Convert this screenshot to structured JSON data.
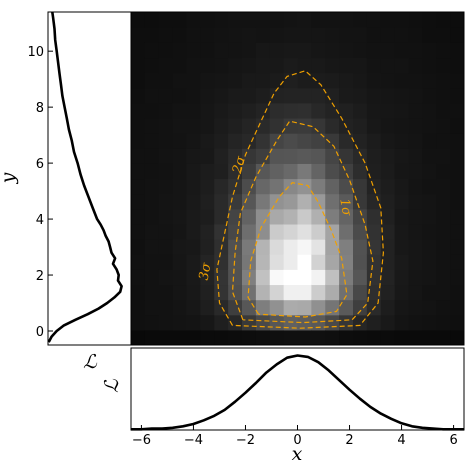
{
  "chart_data": [
    {
      "type": "heatmap",
      "title": "",
      "xlabel": "x",
      "ylabel": "y",
      "xlim": [
        -6.4,
        6.4
      ],
      "ylim": [
        -0.5,
        11.4
      ],
      "x_ticks": [
        "−6",
        "−4",
        "−2",
        "0",
        "2",
        "4",
        "6"
      ],
      "y_ticks": [
        "0",
        "2",
        "4",
        "6",
        "8",
        "10"
      ],
      "x_tick_values": [
        -6,
        -4,
        -2,
        0,
        2,
        4,
        6
      ],
      "y_tick_values": [
        0,
        2,
        4,
        6,
        8,
        10
      ],
      "colormap": "grayscale",
      "peak": {
        "x": 0,
        "y": 1.8
      },
      "contours": [
        {
          "label": "1σ",
          "color": "#f0a000",
          "style": "dashed",
          "points": [
            [
              -1.5,
              0.6
            ],
            [
              -1.9,
              1.2
            ],
            [
              -1.8,
              2.5
            ],
            [
              -1.4,
              3.7
            ],
            [
              -0.7,
              4.8
            ],
            [
              -0.2,
              5.3
            ],
            [
              0.4,
              5.2
            ],
            [
              0.8,
              4.6
            ],
            [
              1.3,
              3.6
            ],
            [
              1.7,
              2.6
            ],
            [
              1.9,
              1.3
            ],
            [
              1.5,
              0.7
            ],
            [
              0.3,
              0.5
            ],
            [
              -1.5,
              0.6
            ]
          ]
        },
        {
          "label": "2σ",
          "color": "#f0a000",
          "style": "dashed",
          "points": [
            [
              -2.1,
              0.4
            ],
            [
              -2.5,
              1.4
            ],
            [
              -2.4,
              2.8
            ],
            [
              -2.2,
              4.2
            ],
            [
              -1.6,
              5.5
            ],
            [
              -0.8,
              6.8
            ],
            [
              -0.3,
              7.5
            ],
            [
              0.6,
              7.3
            ],
            [
              1.4,
              6.6
            ],
            [
              2.0,
              5.4
            ],
            [
              2.6,
              3.8
            ],
            [
              2.9,
              2.5
            ],
            [
              2.7,
              1.0
            ],
            [
              2.1,
              0.4
            ],
            [
              0.2,
              0.3
            ],
            [
              -2.1,
              0.4
            ]
          ]
        },
        {
          "label": "3σ",
          "color": "#f0a000",
          "style": "dashed",
          "points": [
            [
              -2.5,
              0.2
            ],
            [
              -3.0,
              1.0
            ],
            [
              -3.1,
              2.2
            ],
            [
              -2.8,
              3.5
            ],
            [
              -2.5,
              4.8
            ],
            [
              -2.0,
              6.3
            ],
            [
              -1.5,
              7.3
            ],
            [
              -0.9,
              8.5
            ],
            [
              -0.4,
              9.1
            ],
            [
              0.3,
              9.3
            ],
            [
              0.9,
              8.8
            ],
            [
              1.7,
              7.6
            ],
            [
              2.6,
              6.0
            ],
            [
              3.2,
              4.4
            ],
            [
              3.3,
              2.8
            ],
            [
              3.1,
              1.0
            ],
            [
              2.4,
              0.2
            ],
            [
              0.1,
              0.1
            ],
            [
              -2.5,
              0.2
            ]
          ]
        }
      ]
    },
    {
      "type": "line",
      "title": "",
      "ylabel": "ℒ",
      "xlim": [
        -6.4,
        6.4
      ],
      "x_ticks": [
        "−6",
        "−4",
        "−2",
        "0",
        "2",
        "4",
        "6"
      ],
      "x_tick_values": [
        -6,
        -4,
        -2,
        0,
        2,
        4,
        6
      ],
      "ylim": [
        0,
        1.1
      ],
      "series": [
        {
          "x": [
            -6.4,
            -6.0,
            -5.6,
            -5.2,
            -4.8,
            -4.4,
            -4.0,
            -3.6,
            -3.2,
            -2.8,
            -2.4,
            -2.0,
            -1.6,
            -1.2,
            -0.8,
            -0.4,
            0.0,
            0.4,
            0.8,
            1.2,
            1.6,
            2.0,
            2.4,
            2.8,
            3.2,
            3.6,
            4.0,
            4.4,
            4.8,
            5.2,
            5.6,
            6.0,
            6.4
          ],
          "values": [
            0.01,
            0.01,
            0.02,
            0.02,
            0.03,
            0.05,
            0.08,
            0.13,
            0.19,
            0.27,
            0.38,
            0.5,
            0.63,
            0.77,
            0.88,
            0.97,
            1.0,
            0.98,
            0.91,
            0.8,
            0.67,
            0.54,
            0.42,
            0.31,
            0.22,
            0.15,
            0.09,
            0.05,
            0.03,
            0.02,
            0.01,
            0.01,
            0.01
          ]
        }
      ]
    },
    {
      "type": "line",
      "title": "",
      "xlabel": "ℒ",
      "ylim": [
        -0.5,
        11.4
      ],
      "xlim": [
        0,
        1.15
      ],
      "series": [
        {
          "y": [
            -0.4,
            -0.2,
            0.0,
            0.2,
            0.4,
            0.6,
            0.8,
            1.0,
            1.2,
            1.4,
            1.6,
            1.8,
            2.0,
            2.2,
            2.4,
            2.6,
            2.8,
            3.0,
            3.2,
            3.4,
            3.6,
            3.8,
            4.0,
            4.4,
            4.8,
            5.2,
            5.6,
            6.0,
            6.4,
            6.8,
            7.2,
            7.6,
            8.0,
            8.4,
            8.8,
            9.2,
            9.6,
            10.0,
            10.4,
            10.8,
            11.2,
            11.4
          ],
          "values": [
            0.01,
            0.05,
            0.12,
            0.22,
            0.38,
            0.55,
            0.7,
            0.82,
            0.92,
            1.0,
            1.02,
            0.97,
            0.98,
            0.95,
            0.9,
            0.93,
            0.88,
            0.86,
            0.84,
            0.8,
            0.77,
            0.73,
            0.68,
            0.62,
            0.56,
            0.5,
            0.45,
            0.41,
            0.36,
            0.33,
            0.29,
            0.26,
            0.23,
            0.2,
            0.18,
            0.16,
            0.14,
            0.12,
            0.1,
            0.09,
            0.07,
            0.06
          ]
        }
      ]
    }
  ]
}
